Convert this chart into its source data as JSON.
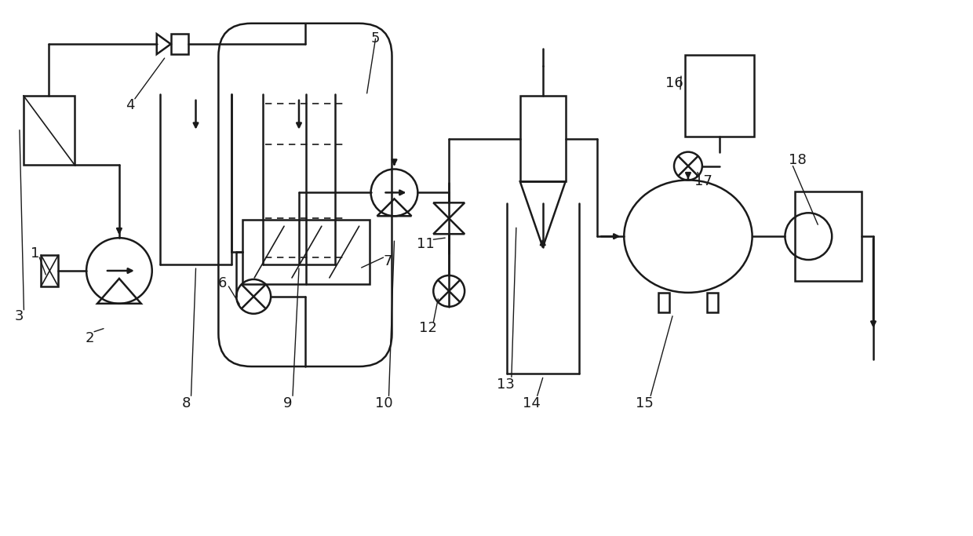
{
  "bg": "#ffffff",
  "lc": "#1a1a1a",
  "lw": 1.8,
  "lw_thin": 1.2,
  "fs": 13,
  "fig_w": 12.4,
  "fig_h": 6.83,
  "dpi": 100,
  "xlim": [
    0,
    12.4
  ],
  "ylim": [
    0,
    6.83
  ]
}
